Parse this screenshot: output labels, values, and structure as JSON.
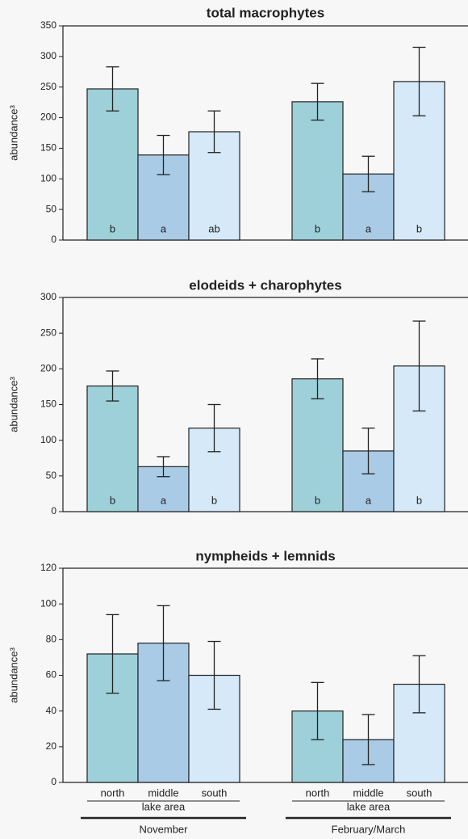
{
  "chart_data": [
    {
      "type": "bar",
      "title": "total macrophytes",
      "ylabel": "abundance³",
      "ylim": [
        0,
        350
      ],
      "yticks": [
        0,
        50,
        100,
        150,
        200,
        250,
        300,
        350
      ],
      "series": [
        {
          "color": "#9dd0d9",
          "values": [
            247,
            226
          ],
          "errors": [
            36,
            30
          ],
          "letters": [
            "b",
            "b"
          ]
        },
        {
          "color": "#a9cbe6",
          "values": [
            139,
            108
          ],
          "errors": [
            32,
            29
          ],
          "letters": [
            "a",
            "a"
          ]
        },
        {
          "color": "#d6e9f8",
          "values": [
            177,
            259
          ],
          "errors": [
            34,
            56
          ],
          "letters": [
            "ab",
            "b"
          ]
        }
      ]
    },
    {
      "type": "bar",
      "title": "elodeids + charophytes",
      "ylabel": "abundance³",
      "ylim": [
        0,
        300
      ],
      "yticks": [
        0,
        50,
        100,
        150,
        200,
        250,
        300
      ],
      "series": [
        {
          "color": "#9dd0d9",
          "values": [
            176,
            186
          ],
          "errors": [
            21,
            28
          ],
          "letters": [
            "b",
            "b"
          ]
        },
        {
          "color": "#a9cbe6",
          "values": [
            63,
            85
          ],
          "errors": [
            14,
            32
          ],
          "letters": [
            "a",
            "a"
          ]
        },
        {
          "color": "#d6e9f8",
          "values": [
            117,
            204
          ],
          "errors": [
            33,
            63
          ],
          "letters": [
            "b",
            "b"
          ]
        }
      ]
    },
    {
      "type": "bar",
      "title": "nympheids + lemnids",
      "ylabel": "abundance³",
      "ylim": [
        0,
        120
      ],
      "yticks": [
        0,
        20,
        40,
        60,
        80,
        100,
        120
      ],
      "categories": [
        "November",
        "February/March"
      ],
      "xlabel": [
        "lake area",
        "lake area"
      ],
      "series": [
        {
          "name": "north",
          "color": "#9dd0d9",
          "values": [
            72,
            40
          ],
          "errors": [
            22,
            16
          ]
        },
        {
          "name": "middle",
          "color": "#a9cbe6",
          "values": [
            78,
            24
          ],
          "errors": [
            21,
            14
          ]
        },
        {
          "name": "south",
          "color": "#d6e9f8",
          "values": [
            60,
            55
          ],
          "errors": [
            19,
            16
          ]
        }
      ]
    }
  ]
}
